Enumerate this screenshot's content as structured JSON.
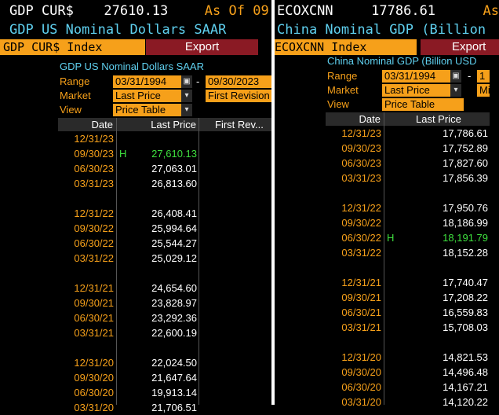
{
  "left": {
    "ticker": "GDP CUR$",
    "last_value": "27610.13",
    "as_of_label": "As Of",
    "as_of_partial": "09",
    "subtitle": "GDP US Nominal Dollars SAAR",
    "index_name": "GDP CUR$ Index",
    "export_label": "Export",
    "chart_title": "GDP US Nominal Dollars SAAR",
    "range_label": "Range",
    "range_start": "03/31/1994",
    "range_end": "09/30/2023",
    "market_label": "Market",
    "market_value": "Last Price",
    "market_value2": "First Revision",
    "view_label": "View",
    "view_value": "Price Table",
    "columns": [
      "Date",
      "Last Price",
      "First Rev..."
    ],
    "rows": [
      {
        "date": "12/31/23",
        "flag": "",
        "value": ""
      },
      {
        "date": "09/30/23",
        "flag": "H",
        "value": "27,610.13"
      },
      {
        "date": "06/30/23",
        "flag": "",
        "value": "27,063.01"
      },
      {
        "date": "03/31/23",
        "flag": "",
        "value": "26,813.60"
      },
      {
        "date": "",
        "flag": "",
        "value": ""
      },
      {
        "date": "12/31/22",
        "flag": "",
        "value": "26,408.41"
      },
      {
        "date": "09/30/22",
        "flag": "",
        "value": "25,994.64"
      },
      {
        "date": "06/30/22",
        "flag": "",
        "value": "25,544.27"
      },
      {
        "date": "03/31/22",
        "flag": "",
        "value": "25,029.12"
      },
      {
        "date": "",
        "flag": "",
        "value": ""
      },
      {
        "date": "12/31/21",
        "flag": "",
        "value": "24,654.60"
      },
      {
        "date": "09/30/21",
        "flag": "",
        "value": "23,828.97"
      },
      {
        "date": "06/30/21",
        "flag": "",
        "value": "23,292.36"
      },
      {
        "date": "03/31/21",
        "flag": "",
        "value": "22,600.19"
      },
      {
        "date": "",
        "flag": "",
        "value": ""
      },
      {
        "date": "12/31/20",
        "flag": "",
        "value": "22,024.50"
      },
      {
        "date": "09/30/20",
        "flag": "",
        "value": "21,647.64"
      },
      {
        "date": "06/30/20",
        "flag": "",
        "value": "19,913.14"
      },
      {
        "date": "03/31/20",
        "flag": "",
        "value": "21,706.51"
      }
    ]
  },
  "right": {
    "ticker": "ECOXCNN",
    "last_value": "17786.61",
    "as_of_partial": "As",
    "subtitle": "China Nominal GDP (Billion",
    "index_name": "ECOXCNN Index",
    "export_label": "Export",
    "chart_title": "China Nominal GDP (Billion USD",
    "range_label": "Range",
    "range_start": "03/31/1994",
    "range_end_partial": "1",
    "market_label": "Market",
    "market_value": "Last Price",
    "market_value2": "Mic",
    "view_label": "View",
    "view_value": "Price Table",
    "columns": [
      "Date",
      "Last Price"
    ],
    "rows": [
      {
        "date": "12/31/23",
        "flag": "",
        "value": "17,786.61"
      },
      {
        "date": "09/30/23",
        "flag": "",
        "value": "17,752.89"
      },
      {
        "date": "06/30/23",
        "flag": "",
        "value": "17,827.60"
      },
      {
        "date": "03/31/23",
        "flag": "",
        "value": "17,856.39"
      },
      {
        "date": "",
        "flag": "",
        "value": ""
      },
      {
        "date": "12/31/22",
        "flag": "",
        "value": "17,950.76"
      },
      {
        "date": "09/30/22",
        "flag": "",
        "value": "18,186.99"
      },
      {
        "date": "06/30/22",
        "flag": "H",
        "value": "18,191.79"
      },
      {
        "date": "03/31/22",
        "flag": "",
        "value": "18,152.28"
      },
      {
        "date": "",
        "flag": "",
        "value": ""
      },
      {
        "date": "12/31/21",
        "flag": "",
        "value": "17,740.47"
      },
      {
        "date": "09/30/21",
        "flag": "",
        "value": "17,208.22"
      },
      {
        "date": "06/30/21",
        "flag": "",
        "value": "16,559.83"
      },
      {
        "date": "03/31/21",
        "flag": "",
        "value": "15,708.03"
      },
      {
        "date": "",
        "flag": "",
        "value": ""
      },
      {
        "date": "12/31/20",
        "flag": "",
        "value": "14,821.53"
      },
      {
        "date": "09/30/20",
        "flag": "",
        "value": "14,496.48"
      },
      {
        "date": "06/30/20",
        "flag": "",
        "value": "14,167.21"
      },
      {
        "date": "03/31/20",
        "flag": "",
        "value": "14,120.22"
      }
    ]
  },
  "icons": {
    "calendar": "calendar-icon",
    "dropdown": "chevron-down-icon"
  },
  "colors": {
    "amber": "#f6a01a",
    "cyan": "#5fd0ef",
    "export_bg": "#8a1a24",
    "highlight": "#3ee03e"
  }
}
